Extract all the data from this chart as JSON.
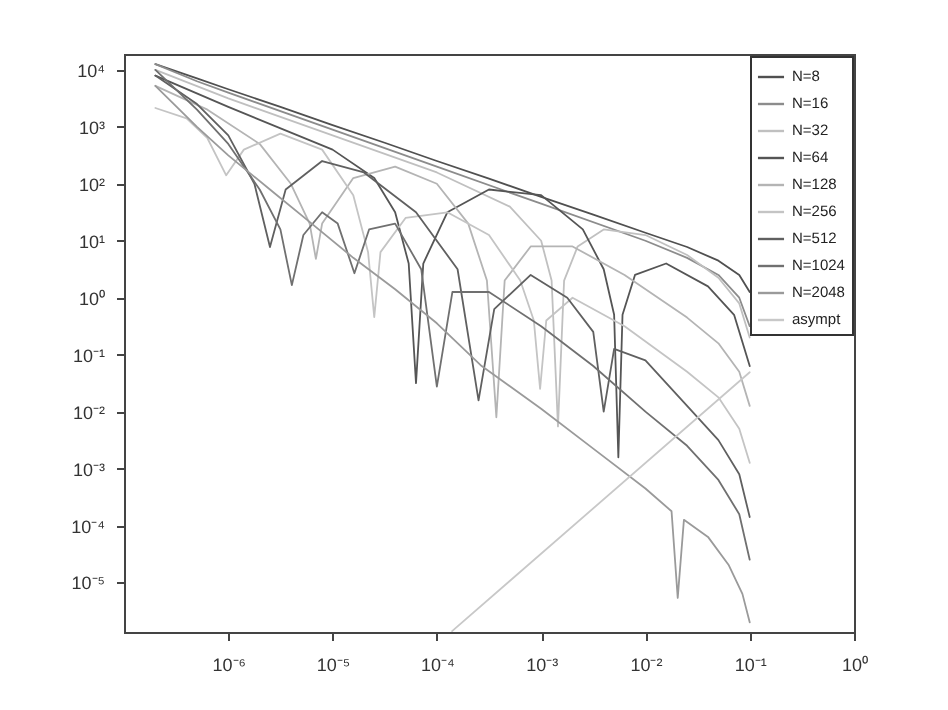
{
  "chart_data": {
    "type": "line",
    "log": "xy",
    "legend": "top right",
    "xlim": [
      1e-07,
      1
    ],
    "ylim": [
      1.35e-06,
      19000
    ],
    "xticks": [
      {
        "value": 1e-06,
        "label": "10⁻⁶"
      },
      {
        "value": 1e-05,
        "label": "10⁻⁵"
      },
      {
        "value": 0.0001,
        "label": "10⁻⁴"
      },
      {
        "value": 0.001,
        "label": "10⁻³"
      },
      {
        "value": 0.01,
        "label": "10⁻²"
      },
      {
        "value": 0.1,
        "label": "10⁻¹"
      },
      {
        "value": 1,
        "label": "10⁰"
      }
    ],
    "yticks": [
      {
        "value": 1e-05,
        "label": "10⁻⁵"
      },
      {
        "value": 0.0001,
        "label": "10⁻⁴"
      },
      {
        "value": 0.001,
        "label": "10⁻³"
      },
      {
        "value": 0.01,
        "label": "10⁻²"
      },
      {
        "value": 0.1,
        "label": "10⁻¹"
      },
      {
        "value": 1,
        "label": "10⁰"
      },
      {
        "value": 10,
        "label": "10¹"
      },
      {
        "value": 100,
        "label": "10²"
      },
      {
        "value": 1000,
        "label": "10³"
      },
      {
        "value": 10000,
        "label": "10⁴"
      }
    ],
    "series": [
      {
        "name": "N=8",
        "color": "#505050",
        "x": [
          2e-07,
          5.01e-07,
          1e-06,
          3.16e-06,
          1e-05,
          3.16e-05,
          0.0001,
          0.000316,
          0.001,
          0.00316,
          0.01,
          0.0251,
          0.0501,
          0.0794,
          0.1
        ],
        "values": [
          12600,
          7080,
          4570,
          2240,
          1070,
          525,
          251,
          123,
          58.9,
          28.8,
          13.8,
          7.76,
          4.47,
          2.51,
          1.26
        ]
      },
      {
        "name": "N=16",
        "color": "#8c8c8c",
        "x": [
          2e-07,
          5.01e-07,
          1e-06,
          1e-05,
          0.0001,
          0.001,
          0.01,
          0.0251,
          0.0501,
          0.0794,
          0.1
        ],
        "values": [
          12600,
          6310,
          3980,
          891,
          200,
          44.7,
          10,
          5.01,
          2.51,
          1,
          0.316
        ]
      },
      {
        "name": "N=32",
        "color": "#c0c0c0",
        "x": [
          2e-07,
          1e-06,
          1e-05,
          0.0001,
          0.000501,
          0.001,
          0.00126,
          0.00145,
          0.00166,
          0.00224,
          0.00398,
          0.01,
          0.0251,
          0.0501,
          0.0794,
          0.1
        ],
        "values": [
          10000,
          3160,
          708,
          158,
          39.8,
          10,
          2.0,
          0.0055,
          2.0,
          7.94,
          15.8,
          12.6,
          5.62,
          2.24,
          0.794,
          0.2
        ]
      },
      {
        "name": "N=64",
        "color": "#555555",
        "x": [
          2e-07,
          1e-06,
          1e-05,
          2.51e-05,
          3.98e-05,
          5.37e-05,
          6.31e-05,
          7.41e-05,
          0.000126,
          0.000316,
          0.001,
          0.00251,
          0.00398,
          0.00501,
          0.0055,
          0.00603,
          0.00794,
          0.0158,
          0.0398,
          0.0708,
          0.1
        ],
        "values": [
          7940,
          2240,
          398,
          126,
          31.6,
          3.98,
          0.0316,
          3.98,
          31.6,
          79.4,
          63.1,
          15.8,
          3.16,
          0.501,
          0.00158,
          0.501,
          2.51,
          3.98,
          1.58,
          0.501,
          0.0631
        ]
      },
      {
        "name": "N=128",
        "color": "#b4b4b4",
        "x": [
          2e-07,
          6.31e-07,
          2e-06,
          3.98e-06,
          6.03e-06,
          6.92e-06,
          7.94e-06,
          1.58e-05,
          3.98e-05,
          0.0001,
          0.0002,
          0.000302,
          0.000372,
          0.000447,
          0.000794,
          0.002,
          0.00631,
          0.0251,
          0.0501,
          0.0794,
          0.1
        ],
        "values": [
          5250,
          2000,
          501,
          100,
          20,
          4.79,
          20,
          126,
          200,
          100,
          20,
          2.0,
          0.00794,
          2.0,
          7.94,
          7.94,
          2.51,
          0.447,
          0.158,
          0.0501,
          0.0126
        ]
      },
      {
        "name": "N=256",
        "color": "#c4c4c4",
        "x": [
          2e-07,
          3.98e-07,
          6.31e-07,
          9.55e-07,
          1.41e-06,
          3.16e-06,
          7.94e-06,
          1.58e-05,
          2.19e-05,
          2.51e-05,
          2.88e-05,
          5.01e-05,
          0.000126,
          0.000316,
          0.000631,
          0.000851,
          0.000977,
          0.00112,
          0.002,
          0.00631,
          0.0251,
          0.0501,
          0.0794,
          0.1
        ],
        "values": [
          2140,
          1410,
          631,
          141,
          398,
          759,
          398,
          63.1,
          6.31,
          0.457,
          6.31,
          25.1,
          31.6,
          12.6,
          2.0,
          0.398,
          0.0251,
          0.398,
          1,
          0.316,
          0.0501,
          0.0178,
          0.005,
          0.00126
        ]
      },
      {
        "name": "N=512",
        "color": "#606060",
        "x": [
          2e-07,
          5.01e-07,
          1e-06,
          1.78e-06,
          2.51e-06,
          3.55e-06,
          7.94e-06,
          2e-05,
          6.31e-05,
          0.000158,
          0.000251,
          0.000355,
          0.000794,
          0.00178,
          0.00316,
          0.00398,
          0.00501,
          0.01,
          0.0251,
          0.0501,
          0.0794,
          0.1
        ],
        "values": [
          7940,
          2510,
          708,
          100,
          7.76,
          79.4,
          251,
          158,
          31.6,
          3.16,
          0.0158,
          0.631,
          2.51,
          1,
          0.251,
          0.01,
          0.126,
          0.0794,
          0.0126,
          0.00316,
          0.000794,
          0.000141
        ]
      },
      {
        "name": "N=1024",
        "color": "#707070",
        "x": [
          2e-07,
          5.01e-07,
          1e-06,
          2e-06,
          3.16e-06,
          4.07e-06,
          5.25e-06,
          7.94e-06,
          1.12e-05,
          1.62e-05,
          2.24e-05,
          3.98e-05,
          7.08e-05,
          0.0001,
          0.000141,
          0.000316,
          0.001,
          0.00316,
          0.01,
          0.0251,
          0.0501,
          0.0794,
          0.1
        ],
        "values": [
          10000,
          2000,
          501,
          79.4,
          15.8,
          1.66,
          12.6,
          31.6,
          20,
          2.69,
          15.8,
          20,
          3.16,
          0.0275,
          1.26,
          1.26,
          0.316,
          0.0631,
          0.01,
          0.00251,
          0.000631,
          0.000158,
          2.51e-05
        ]
      },
      {
        "name": "N=2048",
        "color": "#9a9a9a",
        "x": [
          2e-07,
          5.01e-07,
          1e-06,
          2.51e-06,
          6.31e-06,
          1.58e-05,
          3.98e-05,
          0.0001,
          0.000269,
          0.001,
          0.00316,
          0.01,
          0.0178,
          0.0204,
          0.0234,
          0.0398,
          0.0631,
          0.0851,
          0.1
        ],
        "values": [
          5250,
          1000,
          316,
          79.4,
          20,
          5.01,
          1.41,
          0.355,
          0.0631,
          0.0112,
          0.00224,
          0.000447,
          0.000178,
          5.37e-06,
          0.000126,
          6.31e-05,
          2e-05,
          6.31e-06,
          2e-06
        ]
      },
      {
        "name": "asympt",
        "color": "#c8c8c8",
        "x": [
          0.00014,
          0.1
        ],
        "values": [
          1.4e-06,
          0.049
        ]
      }
    ]
  }
}
